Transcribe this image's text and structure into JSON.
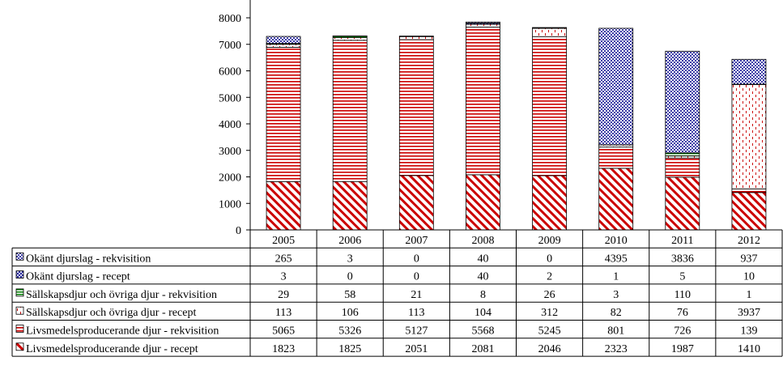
{
  "chart_data": {
    "type": "bar",
    "stacked": true,
    "categories": [
      "2005",
      "2006",
      "2007",
      "2008",
      "2009",
      "2010",
      "2011",
      "2012"
    ],
    "ylim": [
      0,
      8000
    ],
    "yticks": [
      0,
      1000,
      2000,
      3000,
      4000,
      5000,
      6000,
      7000,
      8000
    ],
    "grid": false,
    "legend_placement": "data-table-left",
    "series": [
      {
        "name": "Okänt djurslag - rekvisition",
        "pattern": "dots",
        "color": "#00008b",
        "values": [
          265,
          3,
          0,
          40,
          0,
          4395,
          3836,
          937
        ]
      },
      {
        "name": "Okänt djurslag - recept",
        "pattern": "crosshatch",
        "color": "#00008b",
        "values": [
          3,
          0,
          0,
          40,
          2,
          1,
          5,
          10
        ]
      },
      {
        "name": "Sällskapsdjur och övriga djur - rekvisition",
        "pattern": "green-hlines",
        "color": "#008000",
        "values": [
          29,
          58,
          21,
          8,
          26,
          3,
          110,
          1
        ]
      },
      {
        "name": "Sällskapsdjur och övriga djur - recept",
        "pattern": "red-dashes",
        "color": "#cc0000",
        "values": [
          113,
          106,
          113,
          104,
          312,
          82,
          76,
          3937
        ]
      },
      {
        "name": "Livsmedelsproducerande djur - rekvisition",
        "pattern": "red-hlines",
        "color": "#cc0000",
        "values": [
          5065,
          5326,
          5127,
          5568,
          5245,
          801,
          726,
          139
        ]
      },
      {
        "name": "Livsmedelsproducerande djur - recept",
        "pattern": "red-diagonal",
        "color": "#cc0000",
        "values": [
          1823,
          1825,
          2051,
          2081,
          2046,
          2323,
          1987,
          1410
        ]
      }
    ]
  }
}
